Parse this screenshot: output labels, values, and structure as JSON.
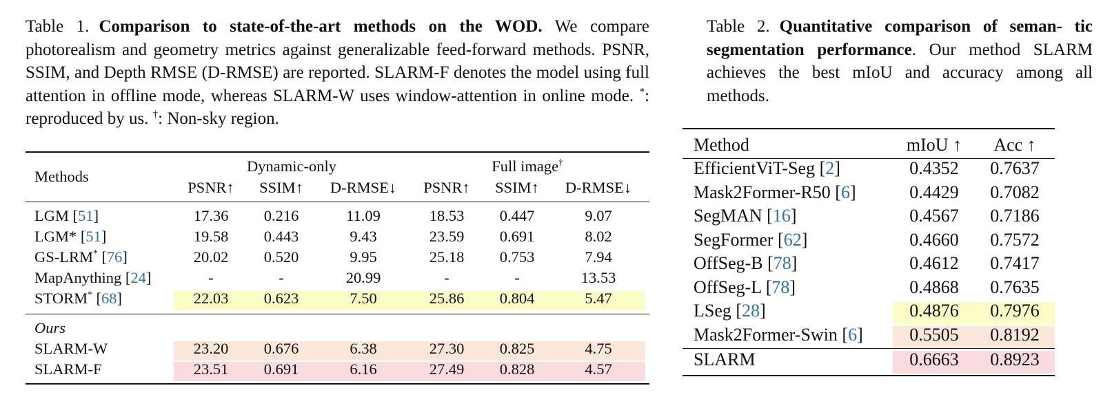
{
  "table1": {
    "caption": {
      "label": "Table 1.",
      "title": "Comparison to state-of-the-art methods on the WOD.",
      "text": "We compare photorealism and geometry metrics against generalizable feed-forward methods. PSNR, SSIM, and Depth RMSE (D-RMSE) are reported. SLARM-F denotes the model using full attention in offline mode, whereas SLARM-W uses window-attention in online mode.",
      "star": "*",
      "star_note": ": reproduced by us.",
      "dagger": "†",
      "dagger_note": ": Non-sky region."
    },
    "headers": {
      "methods": "Methods",
      "group1": "Dynamic-only",
      "group2": "Full image",
      "group2_sup": "†",
      "cols": [
        "PSNR↑",
        "SSIM↑",
        "D-RMSE↓",
        "PSNR↑",
        "SSIM↑",
        "D-RMSE↓"
      ]
    },
    "section_ours": "Ours",
    "rows": [
      {
        "name": "LGM",
        "sup": "",
        "cite": "51",
        "values": [
          "17.36",
          "0.216",
          "11.09",
          "18.53",
          "0.447",
          "9.07"
        ],
        "highlight": "none"
      },
      {
        "name": "LGM*",
        "sup": "",
        "cite": "51",
        "values": [
          "19.58",
          "0.443",
          "9.43",
          "23.59",
          "0.691",
          "8.02"
        ],
        "highlight": "none"
      },
      {
        "name": "GS-LRM",
        "sup": "*",
        "cite": "76",
        "values": [
          "20.02",
          "0.520",
          "9.95",
          "25.18",
          "0.753",
          "7.94"
        ],
        "highlight": "none"
      },
      {
        "name": "MapAnything",
        "sup": "",
        "cite": "24",
        "values": [
          "-",
          "-",
          "20.99",
          "-",
          "-",
          "13.53"
        ],
        "highlight": "none"
      },
      {
        "name": "STORM",
        "sup": "*",
        "cite": "68",
        "values": [
          "22.03",
          "0.623",
          "7.50",
          "25.86",
          "0.804",
          "5.47"
        ],
        "highlight": "yellow"
      },
      {
        "name": "SLARM-W",
        "sup": "",
        "cite": "",
        "values": [
          "23.20",
          "0.676",
          "6.38",
          "27.30",
          "0.825",
          "4.75"
        ],
        "highlight": "peach"
      },
      {
        "name": "SLARM-F",
        "sup": "",
        "cite": "",
        "values": [
          "23.51",
          "0.691",
          "6.16",
          "27.49",
          "0.828",
          "4.57"
        ],
        "highlight": "pink"
      }
    ]
  },
  "table2": {
    "caption": {
      "label": "Table 2.",
      "title_part1": "Quantitative comparison of seman-",
      "title_part2": "tic segmentation performance",
      "text": ". Our method SLARM achieves the best mIoU and accuracy among all methods."
    },
    "headers": {
      "method": "Method",
      "miou": "mIoU ↑",
      "acc": "Acc ↑"
    },
    "rows": [
      {
        "name": "EfficientViT-Seg",
        "cite": "2",
        "miou": "0.4352",
        "acc": "0.7637",
        "highlight": "none"
      },
      {
        "name": "Mask2Former-R50",
        "cite": "6",
        "miou": "0.4429",
        "acc": "0.7082",
        "highlight": "none"
      },
      {
        "name": "SegMAN",
        "cite": "16",
        "miou": "0.4567",
        "acc": "0.7186",
        "highlight": "none"
      },
      {
        "name": "SegFormer",
        "cite": "62",
        "miou": "0.4660",
        "acc": "0.7572",
        "highlight": "none"
      },
      {
        "name": "OffSeg-B",
        "cite": "78",
        "miou": "0.4612",
        "acc": "0.7417",
        "highlight": "none"
      },
      {
        "name": "OffSeg-L",
        "cite": "78",
        "miou": "0.4868",
        "acc": "0.7635",
        "highlight": "none"
      },
      {
        "name": "LSeg",
        "cite": "28",
        "miou": "0.4876",
        "acc": "0.7976",
        "highlight": "yellow"
      },
      {
        "name": "Mask2Former-Swin",
        "cite": "6",
        "miou": "0.5505",
        "acc": "0.8192",
        "highlight": "peach"
      },
      {
        "name": "SLARM",
        "cite": "",
        "miou": "0.6663",
        "acc": "0.8923",
        "highlight": "pink"
      }
    ]
  }
}
